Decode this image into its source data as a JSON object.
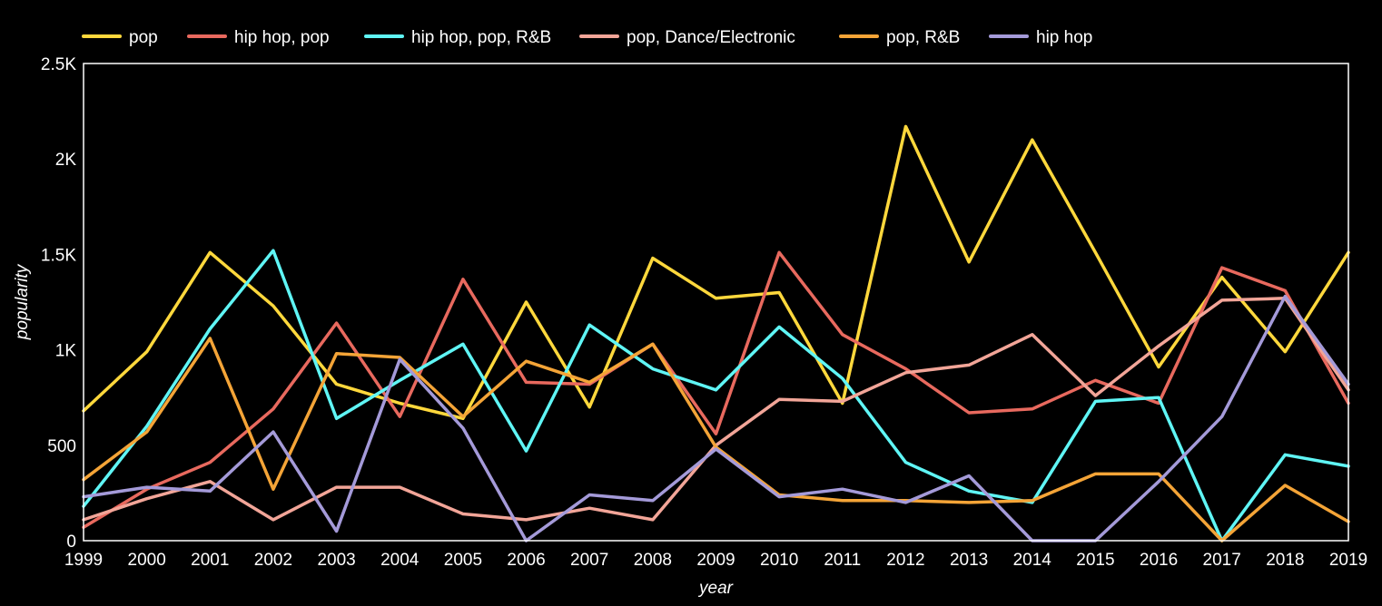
{
  "chart_data": {
    "type": "line",
    "xlabel": "year",
    "ylabel": "popularity",
    "x": [
      "1999",
      "2000",
      "2001",
      "2002",
      "2003",
      "2004",
      "2005",
      "2006",
      "2007",
      "2008",
      "2009",
      "2010",
      "2011",
      "2012",
      "2013",
      "2014",
      "2015",
      "2016",
      "2017",
      "2018",
      "2019"
    ],
    "ylim": [
      0,
      2500
    ],
    "yticks": [
      0,
      500,
      1000,
      1500,
      2000,
      2500
    ],
    "ytick_labels": [
      "0",
      "500",
      "1K",
      "1.5K",
      "2K",
      "2.5K"
    ],
    "grid": false,
    "legend_position": "top-left",
    "series": [
      {
        "name": "pop",
        "color": "#ffd83c",
        "values": [
          680,
          990,
          1510,
          1230,
          820,
          720,
          640,
          1250,
          700,
          1480,
          1270,
          1300,
          720,
          2170,
          1460,
          2100,
          1510,
          910,
          1380,
          990,
          1510
        ]
      },
      {
        "name": "hip hop, pop",
        "color": "#e8695e",
        "values": [
          70,
          270,
          410,
          690,
          1140,
          650,
          1370,
          830,
          820,
          1030,
          560,
          1510,
          1080,
          900,
          670,
          690,
          840,
          720,
          1430,
          1310,
          720
        ]
      },
      {
        "name": "hip hop, pop, R&B",
        "color": "#5ff5f5",
        "values": [
          180,
          600,
          1110,
          1520,
          640,
          840,
          1030,
          470,
          1130,
          900,
          790,
          1120,
          850,
          410,
          260,
          200,
          730,
          750,
          0,
          450,
          390
        ]
      },
      {
        "name": "pop, Dance/Electronic",
        "color": "#f2a598",
        "values": [
          110,
          220,
          310,
          110,
          280,
          280,
          140,
          110,
          170,
          110,
          500,
          740,
          730,
          880,
          920,
          1080,
          760,
          1020,
          1260,
          1270,
          790
        ]
      },
      {
        "name": "pop, R&B",
        "color": "#f4a437",
        "values": [
          320,
          570,
          1060,
          270,
          980,
          960,
          650,
          940,
          830,
          1030,
          490,
          240,
          210,
          210,
          200,
          210,
          350,
          350,
          0,
          290,
          100
        ]
      },
      {
        "name": "hip hop",
        "color": "#a49ad9",
        "values": [
          230,
          280,
          260,
          570,
          50,
          950,
          590,
          0,
          240,
          210,
          480,
          230,
          270,
          200,
          340,
          0,
          0,
          310,
          650,
          1280,
          820
        ]
      }
    ]
  }
}
